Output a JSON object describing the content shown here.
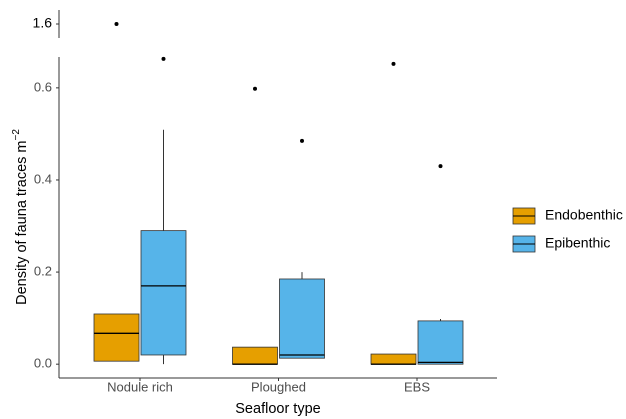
{
  "chart_data": {
    "type": "box",
    "xlabel": "Seafloor type",
    "ylabel": "Density of fauna traces m",
    "ylabel_sup": "−2",
    "categories": [
      "Nodule rich",
      "Ploughed",
      "EBS"
    ],
    "ylim": [
      -0.03,
      0.667
    ],
    "yticks": [
      {
        "value": 0,
        "label": "0.0"
      },
      0.2,
      0.4,
      0.6
    ],
    "upper_ylim": [
      1.55,
      1.65
    ],
    "upper_yticks": [
      1.6
    ],
    "legend": "right",
    "series": [
      {
        "name": "Endobenthic",
        "color": "#E69F00",
        "min": [
          0.0065,
          0,
          0
        ],
        "q1": [
          0.0065,
          0,
          0
        ],
        "median": [
          0.067,
          0,
          0
        ],
        "q3": [
          0.109,
          0.037,
          0.022
        ],
        "max": [
          0.109,
          0.037,
          0.022
        ],
        "outliers": [
          [
            1.6
          ],
          [
            0.598
          ],
          [
            0.652
          ]
        ]
      },
      {
        "name": "Epibenthic",
        "color": "#56B4E9",
        "min": [
          0,
          0.013,
          0
        ],
        "q1": [
          0.02,
          0.013,
          0
        ],
        "median": [
          0.17,
          0.02,
          0.004
        ],
        "q3": [
          0.29,
          0.185,
          0.094
        ],
        "max": [
          0.509,
          0.2,
          0.098
        ],
        "outliers": [
          [
            0.663
          ],
          [
            0.485
          ],
          [
            0.43
          ]
        ]
      }
    ]
  }
}
